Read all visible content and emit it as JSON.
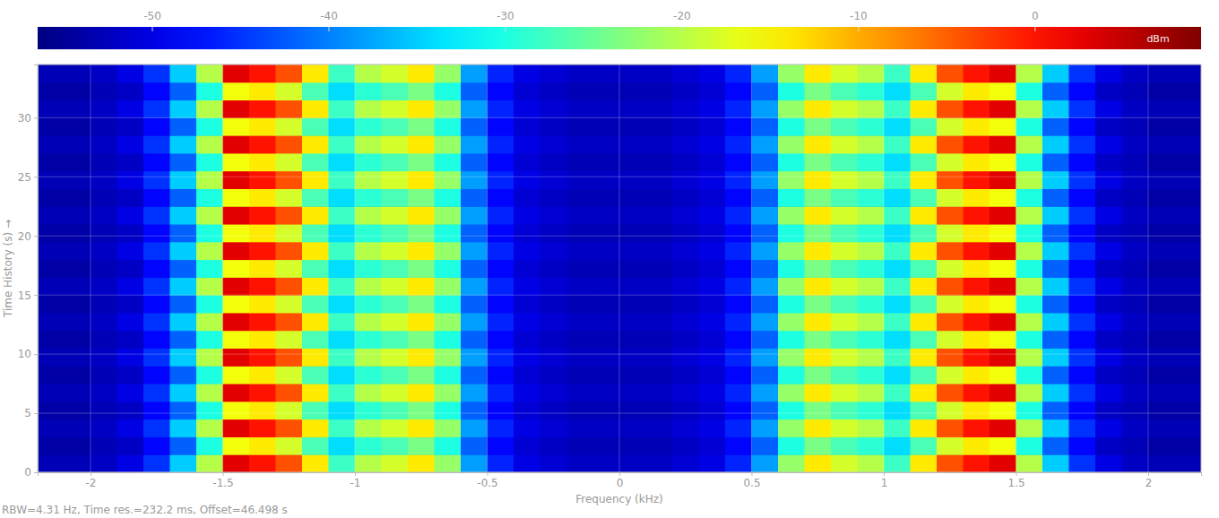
{
  "chart_data": {
    "type": "heatmap",
    "x_label": "Frequency (kHz)",
    "y_label": "Time History (s) →",
    "footnote": "RBW=4.31 Hz, Time res.=232.2 ms, Offset=46.498 s",
    "xlim": [
      -2.2,
      2.2
    ],
    "xticks": [
      -2,
      -1.5,
      -1,
      -0.5,
      0,
      0.5,
      1,
      1.5,
      2
    ],
    "ylim": [
      0,
      34.5
    ],
    "yticks": [
      0,
      5,
      10,
      15,
      20,
      25,
      30
    ],
    "grid": true,
    "x_bins": [
      -2.2,
      -2.1,
      -2,
      -1.9,
      -1.8,
      -1.7,
      -1.6,
      -1.5,
      -1.4,
      -1.3,
      -1.2,
      -1.1,
      -1,
      -0.9,
      -0.8,
      -0.7,
      -0.6,
      -0.5,
      -0.4,
      -0.3,
      -0.2,
      -0.1,
      0,
      0.1,
      0.2,
      0.3,
      0.4,
      0.5,
      0.6,
      0.7,
      0.8,
      0.9,
      1,
      1.1,
      1.2,
      1.3,
      1.4,
      1.5,
      1.6,
      1.7,
      1.8,
      1.9,
      2,
      2.1,
      2.2
    ],
    "y_bins": [
      0,
      1.5,
      3,
      4.5,
      6,
      7.5,
      9,
      10.5,
      12,
      13.5,
      15,
      16.5,
      18,
      19.5,
      21,
      22.5,
      24,
      25.5,
      27,
      28.5,
      30,
      31.5,
      33,
      34.5
    ],
    "z": [
      [
        -53,
        -53,
        -52,
        -50,
        -45,
        -35,
        -20,
        3,
        0,
        -4,
        -14,
        -28,
        -20,
        -18,
        -14,
        -22,
        -38,
        -46,
        -50,
        -51,
        -52,
        -52,
        -52,
        -52,
        -51,
        -50,
        -46,
        -38,
        -22,
        -14,
        -18,
        -20,
        -28,
        -14,
        -4,
        0,
        3,
        -20,
        -35,
        -45,
        -50,
        -52,
        -53,
        -53
      ],
      [
        -54,
        -54,
        -53,
        -52,
        -48,
        -42,
        -30,
        -16,
        -14,
        -18,
        -27,
        -34,
        -29,
        -27,
        -24,
        -30,
        -42,
        -48,
        -51,
        -52,
        -53,
        -53,
        -53,
        -53,
        -52,
        -51,
        -48,
        -42,
        -30,
        -24,
        -27,
        -29,
        -34,
        -27,
        -18,
        -14,
        -16,
        -30,
        -42,
        -48,
        -52,
        -53,
        -54,
        -54
      ],
      [
        -53,
        -53,
        -52,
        -50,
        -45,
        -35,
        -20,
        3,
        0,
        -4,
        -14,
        -28,
        -20,
        -18,
        -14,
        -22,
        -38,
        -46,
        -50,
        -51,
        -52,
        -52,
        -52,
        -52,
        -51,
        -50,
        -46,
        -38,
        -22,
        -14,
        -18,
        -20,
        -28,
        -14,
        -4,
        0,
        3,
        -20,
        -35,
        -45,
        -50,
        -52,
        -53,
        -53
      ],
      [
        -54,
        -54,
        -53,
        -52,
        -48,
        -42,
        -30,
        -16,
        -14,
        -18,
        -27,
        -34,
        -29,
        -27,
        -24,
        -30,
        -42,
        -48,
        -51,
        -52,
        -53,
        -53,
        -53,
        -53,
        -52,
        -51,
        -48,
        -42,
        -30,
        -24,
        -27,
        -29,
        -34,
        -27,
        -18,
        -14,
        -16,
        -30,
        -42,
        -48,
        -52,
        -53,
        -54,
        -54
      ],
      [
        -53,
        -53,
        -52,
        -50,
        -45,
        -35,
        -20,
        3,
        0,
        -4,
        -14,
        -28,
        -20,
        -18,
        -14,
        -22,
        -38,
        -46,
        -50,
        -51,
        -52,
        -52,
        -52,
        -52,
        -51,
        -50,
        -46,
        -38,
        -22,
        -14,
        -18,
        -20,
        -28,
        -14,
        -4,
        0,
        3,
        -20,
        -35,
        -45,
        -50,
        -52,
        -53,
        -53
      ],
      [
        -54,
        -54,
        -53,
        -52,
        -48,
        -42,
        -30,
        -16,
        -14,
        -18,
        -27,
        -34,
        -29,
        -27,
        -24,
        -30,
        -42,
        -48,
        -51,
        -52,
        -53,
        -53,
        -53,
        -53,
        -52,
        -51,
        -48,
        -42,
        -30,
        -24,
        -27,
        -29,
        -34,
        -27,
        -18,
        -14,
        -16,
        -30,
        -42,
        -48,
        -52,
        -53,
        -54,
        -54
      ],
      [
        -53,
        -53,
        -52,
        -50,
        -45,
        -35,
        -20,
        3,
        0,
        -4,
        -14,
        -28,
        -20,
        -18,
        -14,
        -22,
        -38,
        -46,
        -50,
        -51,
        -52,
        -52,
        -52,
        -52,
        -51,
        -50,
        -46,
        -38,
        -22,
        -14,
        -18,
        -20,
        -28,
        -14,
        -4,
        0,
        3,
        -20,
        -35,
        -45,
        -50,
        -52,
        -53,
        -53
      ],
      [
        -54,
        -54,
        -53,
        -52,
        -48,
        -42,
        -30,
        -16,
        -14,
        -18,
        -27,
        -34,
        -29,
        -27,
        -24,
        -30,
        -42,
        -48,
        -51,
        -52,
        -53,
        -53,
        -53,
        -53,
        -52,
        -51,
        -48,
        -42,
        -30,
        -24,
        -27,
        -29,
        -34,
        -27,
        -18,
        -14,
        -16,
        -30,
        -42,
        -48,
        -52,
        -53,
        -54,
        -54
      ],
      [
        -53,
        -53,
        -52,
        -50,
        -45,
        -35,
        -20,
        3,
        0,
        -4,
        -14,
        -28,
        -20,
        -18,
        -14,
        -22,
        -38,
        -46,
        -50,
        -51,
        -52,
        -52,
        -52,
        -52,
        -51,
        -50,
        -46,
        -38,
        -22,
        -14,
        -18,
        -20,
        -28,
        -14,
        -4,
        0,
        3,
        -20,
        -35,
        -45,
        -50,
        -52,
        -53,
        -53
      ],
      [
        -54,
        -54,
        -53,
        -52,
        -48,
        -42,
        -30,
        -16,
        -14,
        -18,
        -27,
        -34,
        -29,
        -27,
        -24,
        -30,
        -42,
        -48,
        -51,
        -52,
        -53,
        -53,
        -53,
        -53,
        -52,
        -51,
        -48,
        -42,
        -30,
        -24,
        -27,
        -29,
        -34,
        -27,
        -18,
        -14,
        -16,
        -30,
        -42,
        -48,
        -52,
        -53,
        -54,
        -54
      ],
      [
        -53,
        -53,
        -52,
        -50,
        -45,
        -35,
        -20,
        3,
        0,
        -4,
        -14,
        -28,
        -20,
        -18,
        -14,
        -22,
        -38,
        -46,
        -50,
        -51,
        -52,
        -52,
        -52,
        -52,
        -51,
        -50,
        -46,
        -38,
        -22,
        -14,
        -18,
        -20,
        -28,
        -14,
        -4,
        0,
        3,
        -20,
        -35,
        -45,
        -50,
        -52,
        -53,
        -53
      ],
      [
        -54,
        -54,
        -53,
        -52,
        -48,
        -42,
        -30,
        -16,
        -14,
        -18,
        -27,
        -34,
        -29,
        -27,
        -24,
        -30,
        -42,
        -48,
        -51,
        -52,
        -53,
        -53,
        -53,
        -53,
        -52,
        -51,
        -48,
        -42,
        -30,
        -24,
        -27,
        -29,
        -34,
        -27,
        -18,
        -14,
        -16,
        -30,
        -42,
        -48,
        -52,
        -53,
        -54,
        -54
      ],
      [
        -53,
        -53,
        -52,
        -50,
        -45,
        -35,
        -20,
        3,
        0,
        -4,
        -14,
        -28,
        -20,
        -18,
        -14,
        -22,
        -38,
        -46,
        -50,
        -51,
        -52,
        -52,
        -52,
        -52,
        -51,
        -50,
        -46,
        -38,
        -22,
        -14,
        -18,
        -20,
        -28,
        -14,
        -4,
        0,
        3,
        -20,
        -35,
        -45,
        -50,
        -52,
        -53,
        -53
      ],
      [
        -54,
        -54,
        -53,
        -52,
        -48,
        -42,
        -30,
        -16,
        -14,
        -18,
        -27,
        -34,
        -29,
        -27,
        -24,
        -30,
        -42,
        -48,
        -51,
        -52,
        -53,
        -53,
        -53,
        -53,
        -52,
        -51,
        -48,
        -42,
        -30,
        -24,
        -27,
        -29,
        -34,
        -27,
        -18,
        -14,
        -16,
        -30,
        -42,
        -48,
        -52,
        -53,
        -54,
        -54
      ],
      [
        -53,
        -53,
        -52,
        -50,
        -45,
        -35,
        -20,
        3,
        0,
        -4,
        -14,
        -28,
        -20,
        -18,
        -14,
        -22,
        -38,
        -46,
        -50,
        -51,
        -52,
        -52,
        -52,
        -52,
        -51,
        -50,
        -46,
        -38,
        -22,
        -14,
        -18,
        -20,
        -28,
        -14,
        -4,
        0,
        3,
        -20,
        -35,
        -45,
        -50,
        -52,
        -53,
        -53
      ],
      [
        -54,
        -54,
        -53,
        -52,
        -48,
        -42,
        -30,
        -16,
        -14,
        -18,
        -27,
        -34,
        -29,
        -27,
        -24,
        -30,
        -42,
        -48,
        -51,
        -52,
        -53,
        -53,
        -53,
        -53,
        -52,
        -51,
        -48,
        -42,
        -30,
        -24,
        -27,
        -29,
        -34,
        -27,
        -18,
        -14,
        -16,
        -30,
        -42,
        -48,
        -52,
        -53,
        -54,
        -54
      ],
      [
        -53,
        -53,
        -52,
        -50,
        -45,
        -35,
        -20,
        3,
        0,
        -4,
        -14,
        -28,
        -20,
        -18,
        -14,
        -22,
        -38,
        -46,
        -50,
        -51,
        -52,
        -52,
        -52,
        -52,
        -51,
        -50,
        -46,
        -38,
        -22,
        -14,
        -18,
        -20,
        -28,
        -14,
        -4,
        0,
        3,
        -20,
        -35,
        -45,
        -50,
        -52,
        -53,
        -53
      ],
      [
        -54,
        -54,
        -53,
        -52,
        -48,
        -42,
        -30,
        -16,
        -14,
        -18,
        -27,
        -34,
        -29,
        -27,
        -24,
        -30,
        -42,
        -48,
        -51,
        -52,
        -53,
        -53,
        -53,
        -53,
        -52,
        -51,
        -48,
        -42,
        -30,
        -24,
        -27,
        -29,
        -34,
        -27,
        -18,
        -14,
        -16,
        -30,
        -42,
        -48,
        -52,
        -53,
        -54,
        -54
      ],
      [
        -53,
        -53,
        -52,
        -50,
        -45,
        -35,
        -20,
        3,
        0,
        -4,
        -14,
        -28,
        -20,
        -18,
        -14,
        -22,
        -38,
        -46,
        -50,
        -51,
        -52,
        -52,
        -52,
        -52,
        -51,
        -50,
        -46,
        -38,
        -22,
        -14,
        -18,
        -20,
        -28,
        -14,
        -4,
        0,
        3,
        -20,
        -35,
        -45,
        -50,
        -52,
        -53,
        -53
      ],
      [
        -54,
        -54,
        -53,
        -52,
        -48,
        -42,
        -30,
        -16,
        -14,
        -18,
        -27,
        -34,
        -29,
        -27,
        -24,
        -30,
        -42,
        -48,
        -51,
        -52,
        -53,
        -53,
        -53,
        -53,
        -52,
        -51,
        -48,
        -42,
        -30,
        -24,
        -27,
        -29,
        -34,
        -27,
        -18,
        -14,
        -16,
        -30,
        -42,
        -48,
        -52,
        -53,
        -54,
        -54
      ],
      [
        -53,
        -53,
        -52,
        -50,
        -45,
        -35,
        -20,
        3,
        0,
        -4,
        -14,
        -28,
        -20,
        -18,
        -14,
        -22,
        -38,
        -46,
        -50,
        -51,
        -52,
        -52,
        -52,
        -52,
        -51,
        -50,
        -46,
        -38,
        -22,
        -14,
        -18,
        -20,
        -28,
        -14,
        -4,
        0,
        3,
        -20,
        -35,
        -45,
        -50,
        -52,
        -53,
        -53
      ],
      [
        -54,
        -54,
        -53,
        -52,
        -48,
        -42,
        -30,
        -16,
        -14,
        -18,
        -27,
        -34,
        -29,
        -27,
        -24,
        -30,
        -42,
        -48,
        -51,
        -52,
        -53,
        -53,
        -53,
        -53,
        -52,
        -51,
        -48,
        -42,
        -30,
        -24,
        -27,
        -29,
        -34,
        -27,
        -18,
        -14,
        -16,
        -30,
        -42,
        -48,
        -52,
        -53,
        -54,
        -54
      ],
      [
        -53,
        -53,
        -52,
        -50,
        -45,
        -35,
        -20,
        3,
        0,
        -4,
        -14,
        -28,
        -20,
        -18,
        -14,
        -22,
        -38,
        -46,
        -50,
        -51,
        -52,
        -52,
        -52,
        -52,
        -51,
        -50,
        -46,
        -38,
        -22,
        -14,
        -18,
        -20,
        -28,
        -14,
        -4,
        0,
        3,
        -20,
        -35,
        -45,
        -50,
        -52,
        -53,
        -53
      ]
    ],
    "colorbar": {
      "label": "dBm",
      "range": [
        -56.5,
        9.4
      ],
      "ticks": [
        -50,
        -40,
        -30,
        -20,
        -10,
        0
      ]
    }
  }
}
